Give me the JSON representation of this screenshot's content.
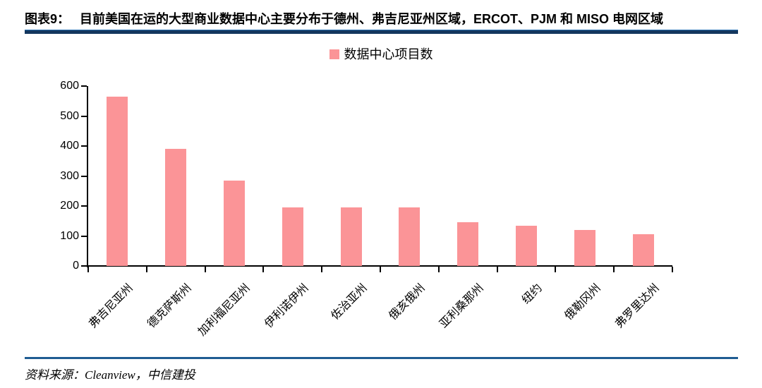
{
  "header": {
    "label": "图表9：",
    "title": "目前美国在运的大型商业数据中心主要分布于德州、弗吉尼亚州区域，ERCOT、PJM 和 MISO 电网区域"
  },
  "legend": {
    "label": "数据中心项目数",
    "swatch_color": "#fb9497",
    "swatch_icon": "legend-swatch-square"
  },
  "chart_data": {
    "type": "bar",
    "title": "数据中心项目数",
    "categories": [
      "弗吉尼亚州",
      "德克萨斯州",
      "加利福尼亚州",
      "伊利诺伊州",
      "佐治亚州",
      "俄亥俄州",
      "亚利桑那州",
      "纽约",
      "俄勒冈州",
      "弗罗里达州"
    ],
    "values": [
      565,
      390,
      285,
      195,
      195,
      195,
      145,
      133,
      120,
      105
    ],
    "series": [
      {
        "name": "数据中心项目数",
        "values": [
          565,
          390,
          285,
          195,
          195,
          195,
          145,
          133,
          120,
          105
        ]
      }
    ],
    "xlabel": "",
    "ylabel": "",
    "ylim": [
      0,
      600
    ],
    "ytick_step": 100,
    "ytick_labels": [
      "0",
      "100",
      "200",
      "300",
      "400",
      "500",
      "600"
    ],
    "grid": false,
    "legend_position": "top-center",
    "bar_color": "#fb9497",
    "axis_color": "#000000"
  },
  "footer": {
    "source_text": "资料来源：Cleanview，中信建投"
  },
  "colors": {
    "header_rule": "#14375e",
    "footer_rule": "#1f5c92",
    "bar": "#fb9497",
    "text": "#000000"
  }
}
